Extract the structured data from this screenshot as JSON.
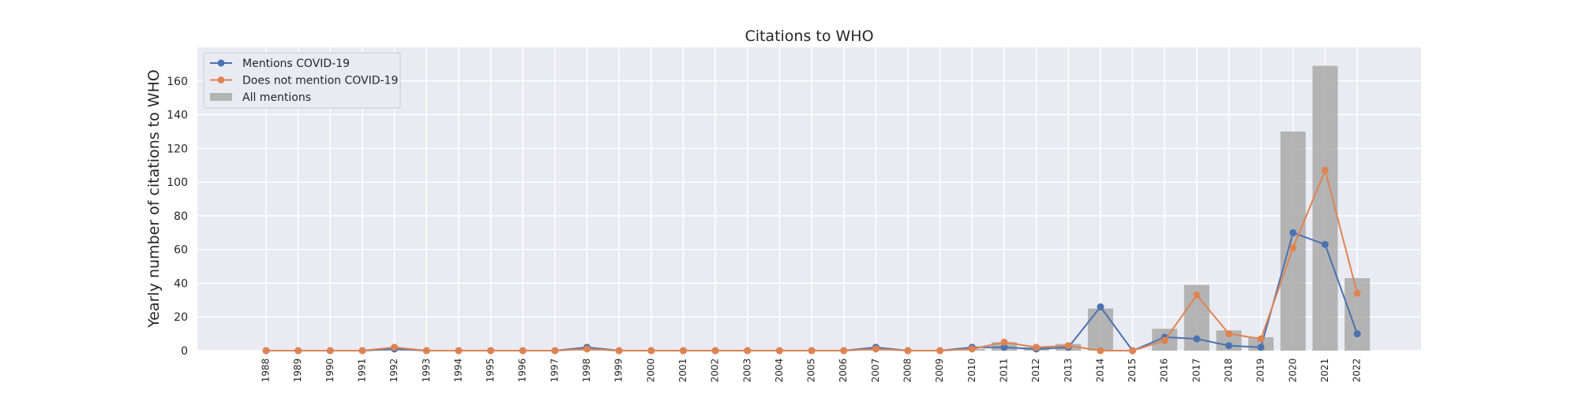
{
  "chart_data": {
    "type": "bar",
    "title": "Citations to WHO",
    "xlabel": "",
    "ylabel": "Yearly number of citations to WHO",
    "ylim": [
      0,
      180
    ],
    "yticks": [
      0,
      20,
      40,
      60,
      80,
      100,
      120,
      140,
      160
    ],
    "grid": true,
    "legend_position": "top-left",
    "categories": [
      "1988",
      "1989",
      "1990",
      "1991",
      "1992",
      "1993",
      "1994",
      "1995",
      "1996",
      "1997",
      "1998",
      "1999",
      "2000",
      "2001",
      "2002",
      "2003",
      "2004",
      "2005",
      "2006",
      "2007",
      "2008",
      "2009",
      "2010",
      "2011",
      "2012",
      "2013",
      "2014",
      "2015",
      "2016",
      "2017",
      "2018",
      "2019",
      "2020",
      "2021",
      "2022"
    ],
    "series": [
      {
        "name": "All mentions",
        "kind": "bar",
        "color": "#a9a9a9",
        "values": [
          0,
          0,
          0,
          0,
          1,
          0,
          0,
          0,
          0,
          0,
          1,
          0,
          0,
          0,
          0,
          0,
          0,
          0,
          0,
          1,
          0,
          0,
          1,
          5,
          2,
          4,
          25,
          0,
          13,
          39,
          12,
          8,
          130,
          169,
          43
        ]
      },
      {
        "name": "Mentions COVID-19",
        "kind": "line",
        "color": "#4c72b0",
        "values": [
          0,
          0,
          0,
          0,
          1,
          0,
          0,
          0,
          0,
          0,
          2,
          0,
          0,
          0,
          0,
          0,
          0,
          0,
          0,
          2,
          0,
          0,
          2,
          2,
          1,
          2,
          26,
          0,
          8,
          7,
          3,
          2,
          70,
          63,
          10
        ]
      },
      {
        "name": "Does not mention COVID-19",
        "kind": "line",
        "color": "#dd8452",
        "values": [
          0,
          0,
          0,
          0,
          2,
          0,
          0,
          0,
          0,
          0,
          1,
          0,
          0,
          0,
          0,
          0,
          0,
          0,
          0,
          1,
          0,
          0,
          1,
          5,
          2,
          3,
          0,
          0,
          6,
          33,
          10,
          7,
          61,
          107,
          34
        ]
      }
    ]
  },
  "colors": {
    "plot_bg": "#eaeaf2",
    "grid": "#ffffff",
    "text": "#262626"
  }
}
